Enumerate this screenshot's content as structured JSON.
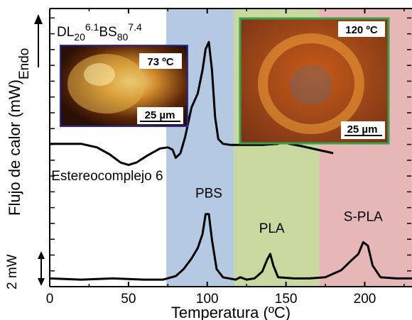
{
  "chart_data": {
    "type": "line",
    "title": "DL20 6.1 BS80 7.4",
    "title_parts": {
      "a": "DL",
      "b": "20",
      "c": "6.1",
      "d": "BS",
      "e": "80",
      "f": "7.4"
    },
    "xlabel": "Temperatura (ºC)",
    "ylabel": "Flujo de calor (mW)",
    "xlim": [
      0,
      230
    ],
    "x_ticks": [
      "0",
      "50",
      "100",
      "150",
      "200"
    ],
    "endo_label": "Endo",
    "scale_bar_label": "2 mW",
    "regions": [
      {
        "from": 74,
        "to": 117,
        "color": "#b6c9e2"
      },
      {
        "from": 117,
        "to": 171,
        "color": "#c8d89e"
      },
      {
        "from": 171,
        "to": 230,
        "color": "#e7b7b7"
      }
    ],
    "series": [
      {
        "label": "Estereocomplejo 6",
        "color": "#000000",
        "x": [
          0,
          20,
          30,
          38,
          45,
          50,
          55,
          62,
          70,
          75,
          78,
          80,
          83,
          86,
          90,
          94,
          97,
          99,
          101,
          103,
          105,
          107,
          110,
          115,
          125,
          135,
          145,
          148,
          152,
          160,
          170,
          180
        ],
        "y": [
          12.2,
          12.2,
          11.9,
          11.3,
          10.6,
          10.4,
          10.6,
          11.2,
          11.8,
          11.9,
          11.7,
          11.0,
          11.4,
          12.8,
          15.3,
          16.5,
          18.5,
          20.3,
          20.9,
          18.5,
          14.5,
          12.6,
          12.2,
          12.1,
          12.1,
          12.1,
          12.2,
          12.4,
          12.2,
          12.0,
          11.7,
          11.4
        ]
      },
      {
        "label": "",
        "color": "#000000",
        "x": [
          0,
          20,
          40,
          60,
          72,
          80,
          85,
          90,
          94,
          97,
          99,
          101,
          103,
          106,
          110,
          118,
          121,
          125,
          130,
          135,
          138,
          140,
          142,
          145,
          155,
          165,
          175,
          185,
          192,
          196,
          199,
          202,
          205,
          210,
          220,
          230
        ],
        "y": [
          0.7,
          0.6,
          0.7,
          0.6,
          0.6,
          0.9,
          1.5,
          2.4,
          3.3,
          4.5,
          6.2,
          6.2,
          4.0,
          1.5,
          0.8,
          0.6,
          0.8,
          0.6,
          0.7,
          1.3,
          2.3,
          2.8,
          1.8,
          0.8,
          0.7,
          0.7,
          0.8,
          1.4,
          2.3,
          2.8,
          3.8,
          3.5,
          1.8,
          0.8,
          0.7,
          0.7
        ]
      }
    ],
    "annotations": [
      {
        "text": "Estereocomplejo 6",
        "x": 1,
        "y": 9.1
      },
      {
        "text": "PBS",
        "x": 101,
        "y": 7.6
      },
      {
        "text": "PLA",
        "x": 141,
        "y": 4.6
      },
      {
        "text": "S-PLA",
        "x": 199,
        "y": 5.6
      }
    ],
    "insets": [
      {
        "temp_label": "73 ºC",
        "scale_label": "25 µm",
        "border_color": "#2a2a9a"
      },
      {
        "temp_label": "120 ºC",
        "scale_label": "25 µm",
        "border_color": "#3aa04a"
      }
    ],
    "grid": false,
    "legend": "none"
  }
}
